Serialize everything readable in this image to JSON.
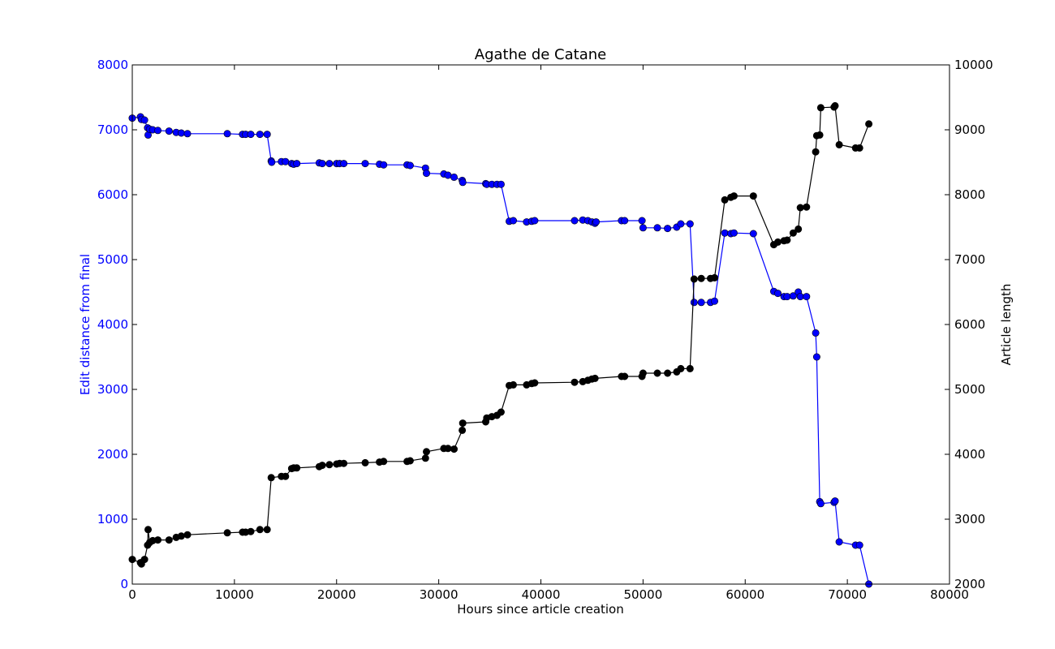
{
  "chart_data": {
    "type": "line",
    "title": "Agathe de Catane",
    "xlabel": "Hours since article creation",
    "xlim": [
      0,
      80000
    ],
    "x_ticks": [
      0,
      10000,
      20000,
      30000,
      40000,
      50000,
      60000,
      70000,
      80000
    ],
    "left_axis": {
      "label": "Edit distance from final",
      "ylim": [
        0,
        8000
      ],
      "ticks": [
        0,
        1000,
        2000,
        3000,
        4000,
        5000,
        6000,
        7000,
        8000
      ],
      "color": "#0000ff"
    },
    "right_axis": {
      "label": "Article length",
      "ylim": [
        2000,
        10000
      ],
      "ticks": [
        2000,
        3000,
        4000,
        5000,
        6000,
        7000,
        8000,
        9000,
        10000
      ],
      "color": "#000000"
    },
    "grid": false,
    "series": [
      {
        "axis": "left",
        "color": "#0000ff",
        "points": [
          [
            0,
            7180
          ],
          [
            800,
            7200
          ],
          [
            900,
            7160
          ],
          [
            1200,
            7150
          ],
          [
            1500,
            7030
          ],
          [
            1550,
            6920
          ],
          [
            1700,
            7010
          ],
          [
            2000,
            7000
          ],
          [
            2500,
            6990
          ],
          [
            3600,
            6980
          ],
          [
            4300,
            6960
          ],
          [
            4800,
            6950
          ],
          [
            5400,
            6940
          ],
          [
            9300,
            6940
          ],
          [
            10800,
            6930
          ],
          [
            11100,
            6930
          ],
          [
            11600,
            6930
          ],
          [
            12500,
            6930
          ],
          [
            13200,
            6930
          ],
          [
            13600,
            6520
          ],
          [
            13650,
            6500
          ],
          [
            14600,
            6510
          ],
          [
            15000,
            6510
          ],
          [
            15600,
            6480
          ],
          [
            15800,
            6470
          ],
          [
            16100,
            6480
          ],
          [
            18300,
            6490
          ],
          [
            18600,
            6480
          ],
          [
            19300,
            6480
          ],
          [
            20000,
            6480
          ],
          [
            20300,
            6480
          ],
          [
            20700,
            6480
          ],
          [
            22800,
            6480
          ],
          [
            24200,
            6470
          ],
          [
            24600,
            6460
          ],
          [
            26900,
            6460
          ],
          [
            27200,
            6450
          ],
          [
            28700,
            6410
          ],
          [
            28800,
            6330
          ],
          [
            30500,
            6320
          ],
          [
            30900,
            6300
          ],
          [
            31500,
            6270
          ],
          [
            32300,
            6220
          ],
          [
            32350,
            6190
          ],
          [
            34600,
            6170
          ],
          [
            34700,
            6160
          ],
          [
            35200,
            6160
          ],
          [
            35700,
            6160
          ],
          [
            36100,
            6160
          ],
          [
            36900,
            5590
          ],
          [
            37300,
            5600
          ],
          [
            38600,
            5580
          ],
          [
            39100,
            5590
          ],
          [
            39400,
            5600
          ],
          [
            43300,
            5600
          ],
          [
            44100,
            5610
          ],
          [
            44600,
            5600
          ],
          [
            45000,
            5580
          ],
          [
            45300,
            5560
          ],
          [
            45400,
            5580
          ],
          [
            47900,
            5600
          ],
          [
            48200,
            5600
          ],
          [
            49900,
            5600
          ],
          [
            50000,
            5490
          ],
          [
            51400,
            5490
          ],
          [
            52400,
            5480
          ],
          [
            53300,
            5500
          ],
          [
            53700,
            5550
          ],
          [
            54600,
            5550
          ],
          [
            55000,
            4340
          ],
          [
            55700,
            4340
          ],
          [
            56600,
            4340
          ],
          [
            57000,
            4360
          ],
          [
            58000,
            5410
          ],
          [
            58600,
            5400
          ],
          [
            58900,
            5410
          ],
          [
            60800,
            5400
          ],
          [
            62800,
            4510
          ],
          [
            63200,
            4480
          ],
          [
            63800,
            4430
          ],
          [
            64100,
            4430
          ],
          [
            64700,
            4440
          ],
          [
            65200,
            4500
          ],
          [
            65400,
            4430
          ],
          [
            66000,
            4430
          ],
          [
            66900,
            3870
          ],
          [
            67000,
            3500
          ],
          [
            67300,
            1270
          ],
          [
            67400,
            1240
          ],
          [
            68700,
            1260
          ],
          [
            68800,
            1280
          ],
          [
            69200,
            650
          ],
          [
            70800,
            600
          ],
          [
            71200,
            600
          ],
          [
            72100,
            0
          ]
        ]
      },
      {
        "axis": "right",
        "color": "#000000",
        "points": [
          [
            0,
            2380
          ],
          [
            800,
            2330
          ],
          [
            900,
            2310
          ],
          [
            1200,
            2380
          ],
          [
            1500,
            2600
          ],
          [
            1550,
            2840
          ],
          [
            1700,
            2640
          ],
          [
            2000,
            2670
          ],
          [
            2500,
            2680
          ],
          [
            3600,
            2680
          ],
          [
            4300,
            2720
          ],
          [
            4800,
            2740
          ],
          [
            5400,
            2760
          ],
          [
            9300,
            2790
          ],
          [
            10800,
            2800
          ],
          [
            11100,
            2800
          ],
          [
            11600,
            2810
          ],
          [
            12500,
            2840
          ],
          [
            13200,
            2840
          ],
          [
            13600,
            3640
          ],
          [
            14600,
            3660
          ],
          [
            15000,
            3660
          ],
          [
            15600,
            3780
          ],
          [
            15800,
            3790
          ],
          [
            16100,
            3790
          ],
          [
            18300,
            3810
          ],
          [
            18600,
            3830
          ],
          [
            19300,
            3840
          ],
          [
            20000,
            3850
          ],
          [
            20300,
            3860
          ],
          [
            20700,
            3860
          ],
          [
            22800,
            3870
          ],
          [
            24200,
            3880
          ],
          [
            24600,
            3890
          ],
          [
            26900,
            3890
          ],
          [
            27200,
            3900
          ],
          [
            28700,
            3940
          ],
          [
            28800,
            4040
          ],
          [
            30500,
            4090
          ],
          [
            30900,
            4090
          ],
          [
            31500,
            4080
          ],
          [
            32300,
            4370
          ],
          [
            32350,
            4480
          ],
          [
            34600,
            4500
          ],
          [
            34700,
            4560
          ],
          [
            35200,
            4580
          ],
          [
            35700,
            4600
          ],
          [
            36100,
            4650
          ],
          [
            36900,
            5060
          ],
          [
            37300,
            5070
          ],
          [
            38600,
            5070
          ],
          [
            39100,
            5090
          ],
          [
            39400,
            5100
          ],
          [
            43300,
            5110
          ],
          [
            44100,
            5120
          ],
          [
            44600,
            5140
          ],
          [
            45000,
            5160
          ],
          [
            45300,
            5170
          ],
          [
            47900,
            5200
          ],
          [
            48200,
            5200
          ],
          [
            49900,
            5200
          ],
          [
            50000,
            5250
          ],
          [
            51400,
            5250
          ],
          [
            52400,
            5250
          ],
          [
            53300,
            5270
          ],
          [
            53700,
            5320
          ],
          [
            54600,
            5320
          ],
          [
            55000,
            6700
          ],
          [
            55700,
            6710
          ],
          [
            56600,
            6710
          ],
          [
            57000,
            6720
          ],
          [
            58000,
            7920
          ],
          [
            58600,
            7960
          ],
          [
            58900,
            7980
          ],
          [
            60800,
            7980
          ],
          [
            62800,
            7230
          ],
          [
            63200,
            7270
          ],
          [
            63800,
            7290
          ],
          [
            64100,
            7300
          ],
          [
            64700,
            7410
          ],
          [
            65200,
            7470
          ],
          [
            65400,
            7800
          ],
          [
            66000,
            7810
          ],
          [
            66900,
            8660
          ],
          [
            67000,
            8910
          ],
          [
            67300,
            8920
          ],
          [
            67400,
            9340
          ],
          [
            68700,
            9350
          ],
          [
            68800,
            9370
          ],
          [
            69200,
            8770
          ],
          [
            70800,
            8720
          ],
          [
            71200,
            8720
          ],
          [
            72100,
            9090
          ]
        ]
      }
    ]
  }
}
